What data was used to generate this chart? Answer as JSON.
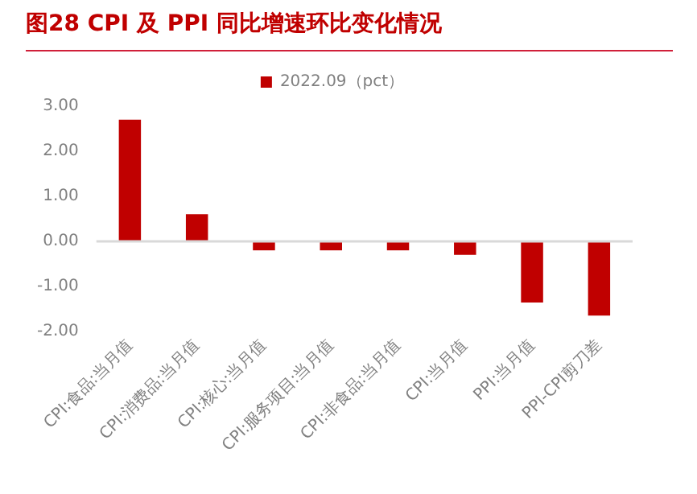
{
  "chart_data": {
    "type": "bar",
    "title": "图28  CPI 及 PPI 同比增速环比变化情况",
    "categories": [
      "CPI:食品:当月值",
      "CPI:消费品:当月值",
      "CPI:核心:当月值",
      "CPI:服务项目:当月值",
      "CPI:非食品:当月值",
      "CPI:当月值",
      "PPI:当月值",
      "PPI-CPI剪刀差"
    ],
    "series": [
      {
        "name": "2022.09（pct）",
        "color": "#c00000",
        "values": [
          2.7,
          0.6,
          -0.2,
          -0.2,
          -0.2,
          -0.3,
          -1.36,
          -1.65
        ]
      }
    ],
    "ylim": [
      -2,
      3
    ],
    "yticks": [
      {
        "value": -2,
        "label": "-2.00"
      },
      {
        "value": -1,
        "label": "-1.00"
      },
      {
        "value": 0,
        "label": "0.00"
      },
      {
        "value": 1,
        "label": "1.00"
      },
      {
        "value": 2,
        "label": "2.00"
      },
      {
        "value": 3,
        "label": "3.00"
      }
    ],
    "ref_lines": [
      {
        "axis": "y",
        "value": 0,
        "color": "#d9d9d9"
      }
    ],
    "grid": false,
    "legend": "top"
  }
}
